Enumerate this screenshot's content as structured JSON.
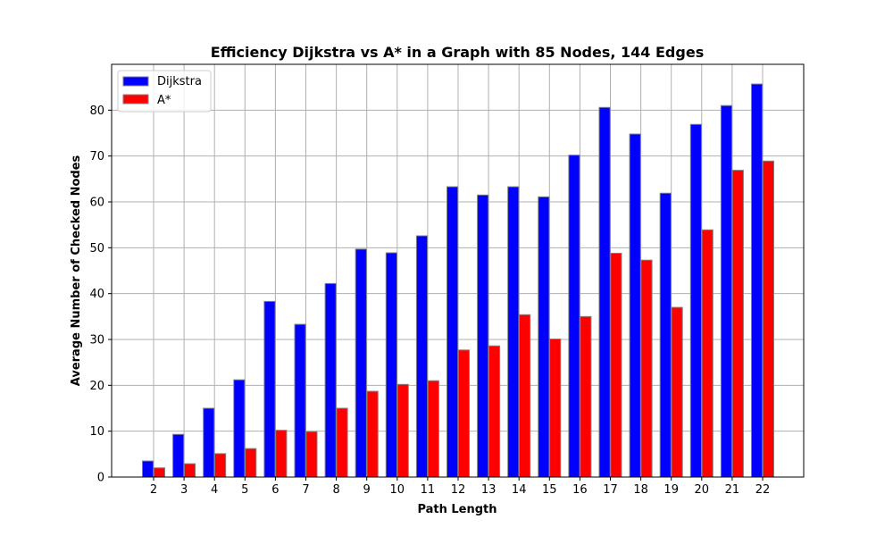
{
  "chart_data": {
    "type": "bar",
    "title": "Efficiency Dijkstra vs A* in a Graph with 85 Nodes, 144 Edges",
    "xlabel": "Path Length",
    "ylabel": "Average Number of Checked Nodes",
    "categories": [
      "2",
      "3",
      "4",
      "5",
      "6",
      "7",
      "8",
      "9",
      "10",
      "11",
      "12",
      "13",
      "14",
      "15",
      "16",
      "17",
      "18",
      "19",
      "20",
      "21",
      "22"
    ],
    "series": [
      {
        "name": "Dijkstra",
        "color": "#0000ff",
        "values": [
          3.5,
          9.3,
          15.0,
          21.2,
          38.3,
          33.3,
          42.2,
          49.7,
          48.9,
          52.6,
          63.3,
          61.5,
          63.3,
          61.1,
          70.2,
          80.6,
          74.8,
          61.9,
          76.9,
          81.0,
          85.7
        ]
      },
      {
        "name": "A*",
        "color": "#ff0000",
        "values": [
          2.0,
          2.9,
          5.1,
          6.2,
          10.2,
          9.9,
          15.0,
          18.7,
          20.2,
          21.0,
          27.7,
          28.6,
          35.4,
          30.1,
          35.0,
          48.8,
          47.3,
          37.0,
          53.9,
          66.9,
          68.9
        ]
      }
    ],
    "ylim": [
      0,
      90
    ],
    "yticks": [
      0,
      10,
      20,
      30,
      40,
      50,
      60,
      70,
      80
    ],
    "grid": true,
    "legend_position": "top-left"
  }
}
